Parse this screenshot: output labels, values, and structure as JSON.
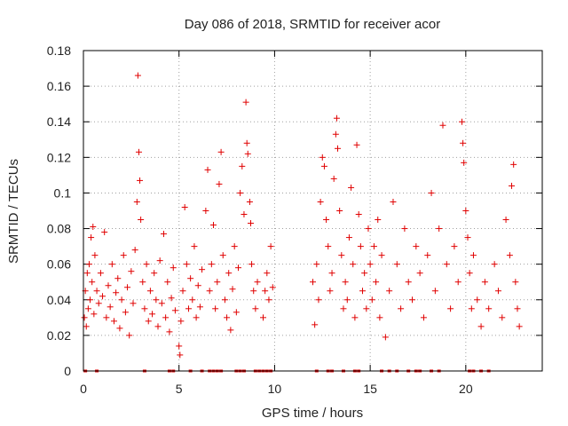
{
  "chart_data": {
    "type": "scatter",
    "title": "Day 086 of 2018, SRMTID for receiver acor",
    "xlabel": "GPS time / hours",
    "ylabel": "SRMTID / TECUs",
    "xlim": [
      0,
      24
    ],
    "ylim": [
      0,
      0.18
    ],
    "x_ticks": [
      0,
      5,
      10,
      15,
      20
    ],
    "x_tick_labels": [
      "0",
      "5",
      "10",
      "15",
      "20"
    ],
    "y_ticks": [
      0,
      0.02,
      0.04,
      0.06,
      0.08,
      0.1,
      0.12,
      0.14,
      0.16,
      0.18
    ],
    "y_tick_labels": [
      "0",
      "0.02",
      "0.04",
      "0.06",
      "0.08",
      "0.1",
      "0.12",
      "0.14",
      "0.16",
      "0.18"
    ],
    "grid": true,
    "marker": "+",
    "color": "#e00000",
    "series": [
      {
        "name": "SRMTID",
        "points": [
          [
            0.05,
            0.03
          ],
          [
            0.1,
            0.045
          ],
          [
            0.15,
            0.025
          ],
          [
            0.2,
            0.055
          ],
          [
            0.25,
            0.035
          ],
          [
            0.3,
            0.06
          ],
          [
            0.35,
            0.04
          ],
          [
            0.4,
            0.075
          ],
          [
            0.45,
            0.05
          ],
          [
            0.5,
            0.081
          ],
          [
            0.55,
            0.032
          ],
          [
            0.6,
            0.065
          ],
          [
            0.7,
            0.045
          ],
          [
            0.8,
            0.038
          ],
          [
            0.9,
            0.055
          ],
          [
            1.0,
            0.042
          ],
          [
            1.1,
            0.078
          ],
          [
            1.2,
            0.03
          ],
          [
            1.3,
            0.048
          ],
          [
            1.4,
            0.036
          ],
          [
            1.5,
            0.06
          ],
          [
            1.6,
            0.028
          ],
          [
            1.7,
            0.044
          ],
          [
            1.8,
            0.052
          ],
          [
            1.9,
            0.024
          ],
          [
            2.0,
            0.04
          ],
          [
            2.1,
            0.065
          ],
          [
            2.2,
            0.033
          ],
          [
            2.3,
            0.047
          ],
          [
            2.4,
            0.02
          ],
          [
            2.5,
            0.056
          ],
          [
            2.6,
            0.038
          ],
          [
            2.7,
            0.068
          ],
          [
            2.8,
            0.095
          ],
          [
            2.85,
            0.166
          ],
          [
            2.9,
            0.123
          ],
          [
            2.95,
            0.107
          ],
          [
            3.0,
            0.085
          ],
          [
            3.1,
            0.05
          ],
          [
            3.2,
            0.035
          ],
          [
            3.3,
            0.06
          ],
          [
            3.4,
            0.028
          ],
          [
            3.5,
            0.045
          ],
          [
            3.6,
            0.032
          ],
          [
            3.7,
            0.055
          ],
          [
            3.8,
            0.04
          ],
          [
            3.9,
            0.025
          ],
          [
            4.0,
            0.062
          ],
          [
            4.1,
            0.038
          ],
          [
            4.2,
            0.077
          ],
          [
            4.3,
            0.03
          ],
          [
            4.4,
            0.05
          ],
          [
            4.5,
            0.022
          ],
          [
            4.6,
            0.041
          ],
          [
            4.7,
            0.058
          ],
          [
            4.8,
            0.034
          ],
          [
            5.0,
            0.014
          ],
          [
            5.05,
            0.009
          ],
          [
            5.1,
            0.028
          ],
          [
            5.2,
            0.045
          ],
          [
            5.3,
            0.092
          ],
          [
            5.4,
            0.06
          ],
          [
            5.5,
            0.035
          ],
          [
            5.6,
            0.052
          ],
          [
            5.7,
            0.04
          ],
          [
            5.8,
            0.07
          ],
          [
            5.9,
            0.03
          ],
          [
            6.0,
            0.048
          ],
          [
            6.1,
            0.036
          ],
          [
            6.2,
            0.057
          ],
          [
            6.4,
            0.09
          ],
          [
            6.5,
            0.113
          ],
          [
            6.6,
            0.045
          ],
          [
            6.7,
            0.06
          ],
          [
            6.8,
            0.082
          ],
          [
            6.9,
            0.035
          ],
          [
            7.0,
            0.05
          ],
          [
            7.1,
            0.105
          ],
          [
            7.2,
            0.123
          ],
          [
            7.3,
            0.065
          ],
          [
            7.4,
            0.04
          ],
          [
            7.5,
            0.03
          ],
          [
            7.6,
            0.055
          ],
          [
            7.7,
            0.023
          ],
          [
            7.8,
            0.046
          ],
          [
            7.9,
            0.07
          ],
          [
            8.0,
            0.033
          ],
          [
            8.1,
            0.058
          ],
          [
            8.2,
            0.1
          ],
          [
            8.3,
            0.115
          ],
          [
            8.4,
            0.088
          ],
          [
            8.5,
            0.151
          ],
          [
            8.55,
            0.128
          ],
          [
            8.6,
            0.122
          ],
          [
            8.7,
            0.095
          ],
          [
            8.75,
            0.083
          ],
          [
            8.8,
            0.06
          ],
          [
            8.9,
            0.045
          ],
          [
            9.0,
            0.035
          ],
          [
            9.1,
            0.05
          ],
          [
            9.4,
            0.03
          ],
          [
            9.5,
            0.045
          ],
          [
            9.6,
            0.055
          ],
          [
            9.7,
            0.04
          ],
          [
            9.8,
            0.07
          ],
          [
            9.9,
            0.047
          ],
          [
            12.0,
            0.05
          ],
          [
            12.1,
            0.026
          ],
          [
            12.2,
            0.06
          ],
          [
            12.3,
            0.04
          ],
          [
            12.4,
            0.095
          ],
          [
            12.5,
            0.12
          ],
          [
            12.6,
            0.115
          ],
          [
            12.7,
            0.085
          ],
          [
            12.8,
            0.07
          ],
          [
            12.9,
            0.045
          ],
          [
            13.0,
            0.055
          ],
          [
            13.1,
            0.108
          ],
          [
            13.2,
            0.133
          ],
          [
            13.25,
            0.142
          ],
          [
            13.3,
            0.125
          ],
          [
            13.4,
            0.09
          ],
          [
            13.5,
            0.065
          ],
          [
            13.6,
            0.035
          ],
          [
            13.7,
            0.05
          ],
          [
            13.8,
            0.04
          ],
          [
            13.9,
            0.075
          ],
          [
            14.0,
            0.103
          ],
          [
            14.1,
            0.06
          ],
          [
            14.2,
            0.03
          ],
          [
            14.3,
            0.127
          ],
          [
            14.4,
            0.088
          ],
          [
            14.5,
            0.07
          ],
          [
            14.6,
            0.045
          ],
          [
            14.7,
            0.055
          ],
          [
            14.8,
            0.035
          ],
          [
            14.9,
            0.08
          ],
          [
            15.0,
            0.06
          ],
          [
            15.1,
            0.04
          ],
          [
            15.2,
            0.07
          ],
          [
            15.3,
            0.05
          ],
          [
            15.4,
            0.085
          ],
          [
            15.5,
            0.03
          ],
          [
            15.6,
            0.065
          ],
          [
            15.8,
            0.019
          ],
          [
            16.0,
            0.045
          ],
          [
            16.2,
            0.095
          ],
          [
            16.4,
            0.06
          ],
          [
            16.6,
            0.035
          ],
          [
            16.8,
            0.08
          ],
          [
            17.0,
            0.05
          ],
          [
            17.2,
            0.04
          ],
          [
            17.4,
            0.07
          ],
          [
            17.6,
            0.055
          ],
          [
            17.8,
            0.03
          ],
          [
            18.0,
            0.065
          ],
          [
            18.2,
            0.1
          ],
          [
            18.4,
            0.045
          ],
          [
            18.6,
            0.08
          ],
          [
            18.8,
            0.138
          ],
          [
            19.0,
            0.06
          ],
          [
            19.2,
            0.035
          ],
          [
            19.4,
            0.07
          ],
          [
            19.6,
            0.05
          ],
          [
            19.8,
            0.14
          ],
          [
            19.85,
            0.128
          ],
          [
            19.9,
            0.117
          ],
          [
            20.0,
            0.09
          ],
          [
            20.1,
            0.075
          ],
          [
            20.2,
            0.055
          ],
          [
            20.3,
            0.035
          ],
          [
            20.4,
            0.065
          ],
          [
            20.6,
            0.04
          ],
          [
            20.8,
            0.025
          ],
          [
            21.0,
            0.05
          ],
          [
            21.2,
            0.035
          ],
          [
            21.5,
            0.06
          ],
          [
            21.7,
            0.045
          ],
          [
            21.9,
            0.03
          ],
          [
            22.1,
            0.085
          ],
          [
            22.3,
            0.065
          ],
          [
            22.4,
            0.104
          ],
          [
            22.5,
            0.116
          ],
          [
            22.6,
            0.05
          ],
          [
            22.7,
            0.035
          ],
          [
            22.8,
            0.025
          ]
        ]
      }
    ],
    "zero_markers_x": [
      0.1,
      0.7,
      3.2,
      4.5,
      4.7,
      5.6,
      6.2,
      6.6,
      6.8,
      7.0,
      7.2,
      8.0,
      8.2,
      8.4,
      9.0,
      9.2,
      9.4,
      9.6,
      9.8,
      12.2,
      12.8,
      13.0,
      13.6,
      14.2,
      14.4,
      15.6,
      16.0,
      16.4,
      17.0,
      17.4,
      17.6,
      18.2,
      18.6,
      20.2,
      20.4,
      20.8,
      21.2
    ]
  }
}
